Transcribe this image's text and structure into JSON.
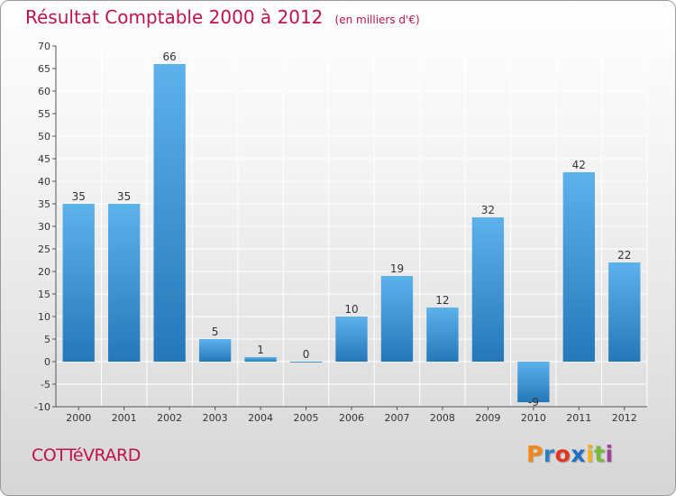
{
  "title": {
    "main": "Résultat Comptable 2000 à 2012",
    "unit": "(en milliers d'€)"
  },
  "commune": "COTTéVRARD",
  "logo": {
    "letters": [
      "P",
      "r",
      "o",
      "x",
      "i",
      "t",
      "i"
    ],
    "colors": [
      "#f08a1c",
      "#2e7fc2",
      "#e2341f",
      "#1f6fc0",
      "#f5b21c",
      "#79b83a",
      "#a43fa0"
    ]
  },
  "colors": {
    "title": "#c0124b",
    "bar_top": "#5db2ec",
    "bar_bottom": "#2478b8",
    "grid": "#ffffff",
    "axis": "#555555"
  },
  "chart_data": {
    "type": "bar",
    "title": "Résultat Comptable 2000 à 2012",
    "subtitle": "(en milliers d'€)",
    "xlabel": "",
    "ylabel": "",
    "categories": [
      "2000",
      "2001",
      "2002",
      "2003",
      "2004",
      "2005",
      "2006",
      "2007",
      "2008",
      "2009",
      "2010",
      "2011",
      "2012"
    ],
    "values": [
      35,
      35,
      66,
      5,
      1,
      0,
      10,
      19,
      12,
      32,
      -9,
      42,
      22
    ],
    "labels": [
      "35",
      "35",
      "66",
      "5",
      "1",
      "0",
      "10",
      "19",
      "12",
      "32",
      "-9",
      "42",
      "22"
    ],
    "ylim": [
      -10,
      70
    ],
    "yticks": [
      -10,
      -5,
      0,
      5,
      10,
      15,
      20,
      25,
      30,
      35,
      40,
      45,
      50,
      55,
      60,
      65,
      70
    ],
    "grid": true,
    "legend": "none"
  }
}
